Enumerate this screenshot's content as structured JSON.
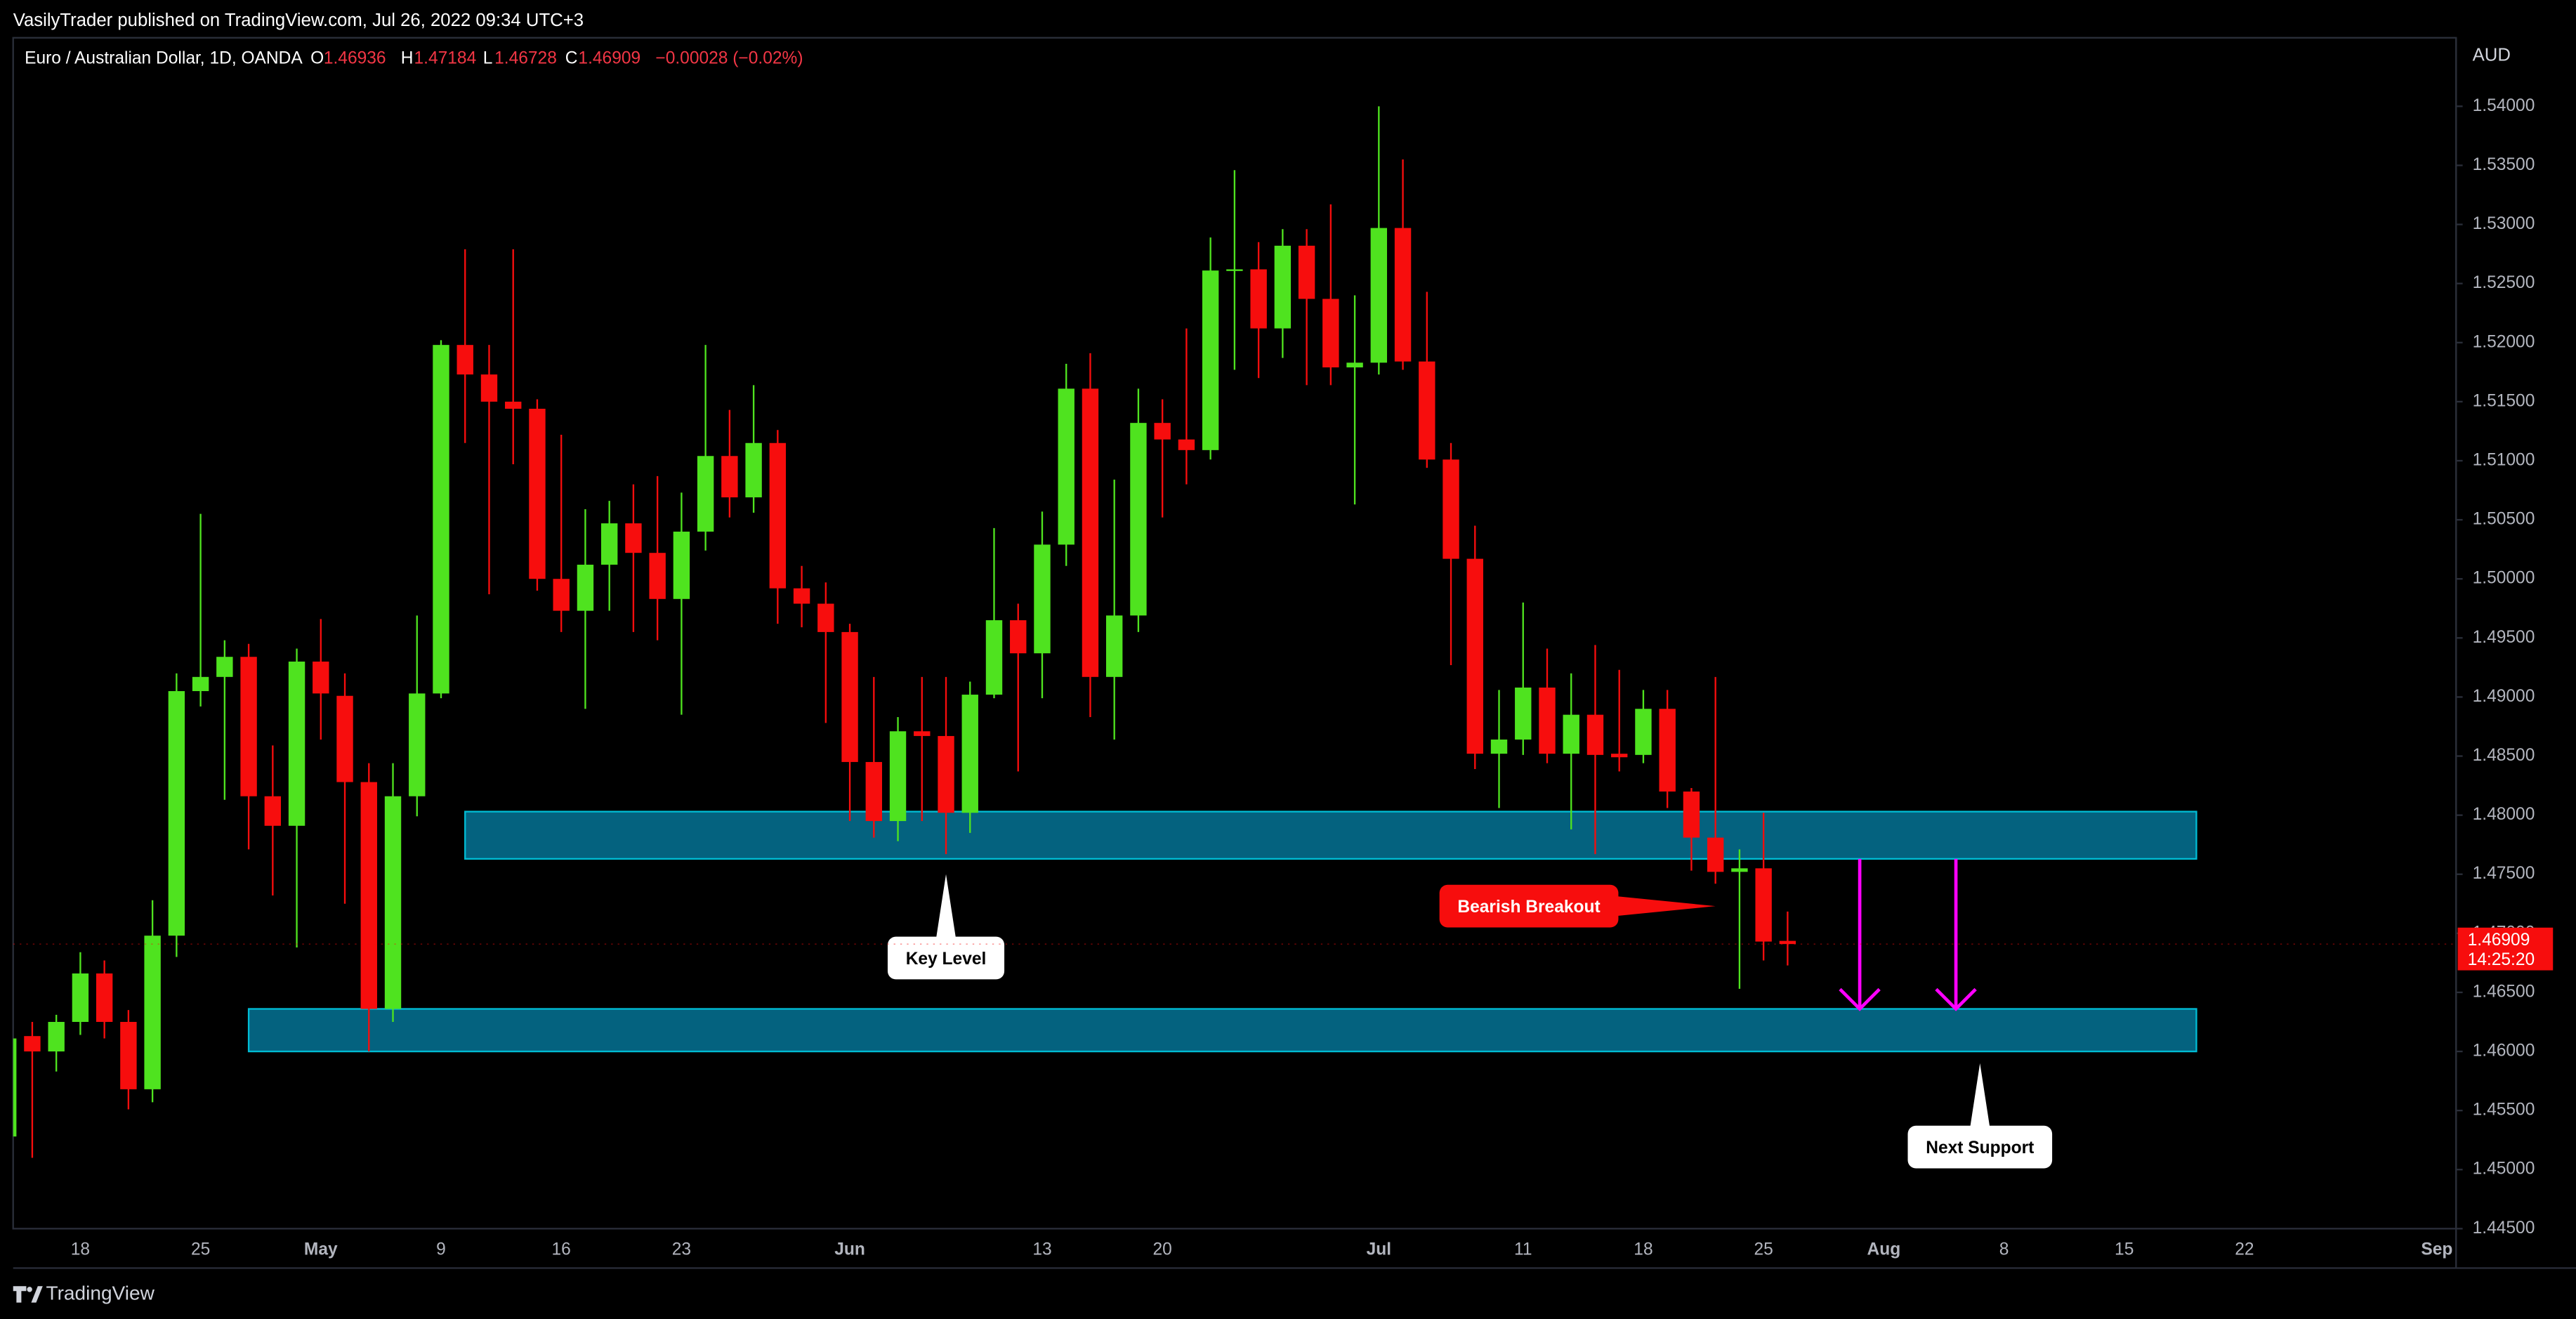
{
  "header": "VasilyTrader published on TradingView.com, Jul 26, 2022 09:34 UTC+3",
  "footer": "TradingView",
  "chart_data": {
    "type": "candlestick",
    "currency": "AUD",
    "change": "−0.00028 (−0.02%)",
    "ohlc_letters": [
      "O",
      "H",
      "L",
      "C"
    ],
    "countdown": "14:25:20",
    "grid": false,
    "ylim": [
      1.445,
      1.5458
    ],
    "yticks": [
      {
        "value": 1.445,
        "label": "1.44500"
      },
      {
        "value": 1.45,
        "label": "1.45000"
      },
      {
        "value": 1.455,
        "label": "1.45500"
      },
      {
        "value": 1.46,
        "label": "1.46000"
      },
      {
        "value": 1.465,
        "label": "1.46500"
      },
      {
        "value": 1.47,
        "label": "1.47000"
      },
      {
        "value": 1.475,
        "label": "1.47500"
      },
      {
        "value": 1.48,
        "label": "1.48000"
      },
      {
        "value": 1.485,
        "label": "1.48500"
      },
      {
        "value": 1.49,
        "label": "1.49000"
      },
      {
        "value": 1.495,
        "label": "1.49500"
      },
      {
        "value": 1.5,
        "label": "1.50000"
      },
      {
        "value": 1.505,
        "label": "1.50500"
      },
      {
        "value": 1.51,
        "label": "1.51000"
      },
      {
        "value": 1.515,
        "label": "1.51500"
      },
      {
        "value": 1.52,
        "label": "1.52000"
      },
      {
        "value": 1.525,
        "label": "1.52500"
      },
      {
        "value": 1.53,
        "label": "1.53000"
      },
      {
        "value": 1.535,
        "label": "1.53500"
      },
      {
        "value": 1.54,
        "label": "1.54000"
      }
    ],
    "categories": [
      null,
      null,
      null,
      "18",
      null,
      null,
      null,
      null,
      "25",
      null,
      null,
      null,
      null,
      "May",
      null,
      null,
      null,
      null,
      "9",
      null,
      null,
      null,
      null,
      "16",
      null,
      null,
      null,
      null,
      "23",
      null,
      null,
      null,
      null,
      null,
      null,
      "Jun",
      null,
      null,
      null,
      null,
      null,
      null,
      null,
      "13",
      null,
      null,
      null,
      null,
      "20",
      null,
      null,
      null,
      null,
      null,
      null,
      null,
      null,
      "Jul",
      null,
      null,
      null,
      null,
      null,
      "11",
      null,
      null,
      null,
      null,
      "18",
      null,
      null,
      null,
      null,
      "25",
      null,
      null,
      null,
      null,
      "Aug",
      null,
      null,
      null,
      null,
      "8",
      null,
      null,
      null,
      null,
      "15",
      null,
      null,
      null,
      null,
      "22",
      null,
      null,
      null,
      null,
      null,
      null,
      null,
      "Sep"
    ],
    "series": [
      {
        "name": "Euro / Australian Dollar, 1D, OANDA",
        "up_color": "#4fe31f",
        "down_color": "#f70d0d",
        "open": [
          1.4528,
          1.4613,
          1.46,
          1.4625,
          1.4666,
          1.4625,
          1.4568,
          1.4698,
          1.4905,
          1.4917,
          1.4934,
          1.4816,
          1.4791,
          1.493,
          1.4901,
          1.4828,
          1.4636,
          1.4816,
          1.4903,
          1.5198,
          1.5173,
          1.515,
          1.5144,
          1.5,
          1.4973,
          1.5012,
          1.5047,
          1.5022,
          1.4983,
          1.504,
          1.5104,
          1.5069,
          1.5115,
          1.4992,
          1.4979,
          1.4955,
          1.4845,
          1.4795,
          1.4871,
          1.4867,
          1.4802,
          1.4902,
          1.4965,
          1.4937,
          1.5029,
          1.5161,
          1.4917,
          1.4969,
          1.5132,
          1.5118,
          1.5109,
          1.5261,
          1.5262,
          1.5212,
          1.5282,
          1.5237,
          1.5179,
          1.5183,
          1.5297,
          1.5184,
          1.5101,
          1.5017,
          1.4852,
          1.4864,
          1.4908,
          1.4852,
          1.4885,
          1.4852,
          1.4851,
          1.489,
          1.482,
          1.4781,
          1.4752,
          1.4755,
          1.46936,
          null,
          null,
          null,
          null,
          null,
          null,
          null,
          null,
          null,
          null,
          null,
          null,
          null,
          null,
          null,
          null,
          null,
          null,
          null,
          null,
          null,
          null,
          null,
          null,
          null,
          null,
          null
        ],
        "high": [
          1.4615,
          1.4625,
          1.4631,
          1.4684,
          1.4677,
          1.4635,
          1.4728,
          1.492,
          1.5055,
          1.4948,
          1.4945,
          1.4859,
          1.4941,
          1.4966,
          1.492,
          1.4844,
          1.4844,
          1.4969,
          1.5202,
          1.5279,
          1.5198,
          1.5279,
          1.5152,
          1.5122,
          1.5059,
          1.5066,
          1.508,
          1.5087,
          1.5073,
          1.5198,
          1.5143,
          1.5164,
          1.5126,
          1.5011,
          1.4997,
          1.4962,
          1.4917,
          1.4883,
          1.4917,
          1.4917,
          1.4913,
          1.5043,
          1.4979,
          1.5057,
          1.5182,
          1.5191,
          1.5084,
          1.5161,
          1.5152,
          1.5212,
          1.5289,
          1.5346,
          1.5285,
          1.5296,
          1.5296,
          1.5317,
          1.524,
          1.54,
          1.5355,
          1.5243,
          1.5115,
          1.5045,
          1.4906,
          1.498,
          1.4941,
          1.492,
          1.4944,
          1.4923,
          1.4906,
          1.4906,
          1.4823,
          1.4917,
          1.4771,
          1.4802,
          1.47184,
          null,
          null,
          null,
          null,
          null,
          null,
          null,
          null,
          null,
          null,
          null,
          null,
          null,
          null,
          null,
          null,
          null,
          null,
          null,
          null,
          null,
          null,
          null,
          null,
          null,
          null,
          null
        ],
        "low": [
          1.452,
          1.451,
          1.4583,
          1.4614,
          1.4611,
          1.4551,
          1.4557,
          1.468,
          1.4892,
          1.4813,
          1.4771,
          1.4732,
          1.4688,
          1.4864,
          1.4725,
          1.46,
          1.4625,
          1.4799,
          1.4899,
          1.5115,
          1.4987,
          1.5097,
          1.499,
          1.4955,
          1.489,
          1.4973,
          1.4955,
          1.4948,
          1.4885,
          1.5024,
          1.5052,
          1.5056,
          1.4962,
          1.4959,
          1.4878,
          1.4795,
          1.4781,
          1.4778,
          1.4795,
          1.4767,
          1.4785,
          1.4899,
          1.4837,
          1.4899,
          1.5011,
          1.4883,
          1.4864,
          1.4955,
          1.5052,
          1.508,
          1.5101,
          1.5177,
          1.517,
          1.5187,
          1.5164,
          1.5164,
          1.5063,
          1.5173,
          1.5177,
          1.5094,
          1.4927,
          1.4839,
          1.4806,
          1.4851,
          1.4844,
          1.4788,
          1.4767,
          1.4837,
          1.4844,
          1.4806,
          1.4753,
          1.4742,
          1.4653,
          1.4677,
          1.46728,
          null,
          null,
          null,
          null,
          null,
          null,
          null,
          null,
          null,
          null,
          null,
          null,
          null,
          null,
          null,
          null,
          null,
          null,
          null,
          null,
          null,
          null,
          null,
          null,
          null,
          null,
          null
        ],
        "close": [
          1.4611,
          1.46,
          1.4625,
          1.4666,
          1.4625,
          1.4568,
          1.4698,
          1.4905,
          1.4917,
          1.4934,
          1.4816,
          1.4791,
          1.493,
          1.4903,
          1.4828,
          1.4636,
          1.4816,
          1.4903,
          1.5198,
          1.5173,
          1.515,
          1.5144,
          1.5,
          1.4973,
          1.5012,
          1.5047,
          1.5022,
          1.4983,
          1.504,
          1.5104,
          1.5069,
          1.5115,
          1.4992,
          1.4979,
          1.4955,
          1.4845,
          1.4795,
          1.4871,
          1.4867,
          1.4802,
          1.4902,
          1.4965,
          1.4937,
          1.5029,
          1.5161,
          1.4917,
          1.4969,
          1.5132,
          1.5118,
          1.5109,
          1.5261,
          1.5262,
          1.5212,
          1.5282,
          1.5237,
          1.5179,
          1.5183,
          1.5297,
          1.5184,
          1.5101,
          1.5017,
          1.4852,
          1.4864,
          1.4908,
          1.4852,
          1.4885,
          1.4851,
          1.4849,
          1.489,
          1.482,
          1.4781,
          1.4752,
          1.4755,
          1.4693,
          1.46909,
          null,
          null,
          null,
          null,
          null,
          null,
          null,
          null,
          null,
          null,
          null,
          null,
          null,
          null,
          null,
          null,
          null,
          null,
          null,
          null,
          null,
          null,
          null,
          null,
          null,
          null,
          null
        ]
      }
    ],
    "zones": [
      {
        "from": 19,
        "to": 91,
        "top": 1.4803,
        "bottom": 1.4763,
        "color": "#04627f",
        "border": "#00bcd4"
      },
      {
        "from": 10,
        "to": 91,
        "top": 1.4636,
        "bottom": 1.46,
        "color": "#04627f",
        "border": "#00bcd4"
      }
    ],
    "arrows": [
      {
        "x": 77,
        "from": 1.4763,
        "to": 1.4636,
        "color": "#ff00ff"
      },
      {
        "x": 81,
        "from": 1.4763,
        "to": 1.4636,
        "color": "#ff00ff"
      }
    ],
    "annotations": [
      {
        "text": "Key Level",
        "x": 39,
        "y": 1.475,
        "side": "below",
        "color": "#ffffff",
        "text_color": "#000000"
      },
      {
        "text": "Bearish Breakout",
        "x": 71,
        "y": 1.4723,
        "side": "left",
        "color": "#f70d0d",
        "text_color": "#ffffff"
      },
      {
        "text": "Next Support",
        "x": 82,
        "y": 1.459,
        "side": "below",
        "color": "#ffffff",
        "text_color": "#000000"
      }
    ]
  }
}
